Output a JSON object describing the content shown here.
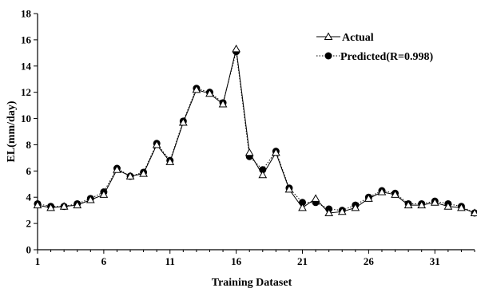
{
  "chart_data": {
    "type": "line",
    "title": "",
    "xlabel": "Training Dataset",
    "ylabel": "EL(mm/day)",
    "xlim": [
      1,
      34
    ],
    "ylim": [
      0,
      18
    ],
    "xticks": [
      1,
      6,
      11,
      16,
      21,
      26,
      31
    ],
    "yticks": [
      0,
      2,
      4,
      6,
      8,
      10,
      12,
      14,
      16,
      18
    ],
    "grid": false,
    "legend_position": "top-right",
    "x": [
      1,
      2,
      3,
      4,
      5,
      6,
      7,
      8,
      9,
      10,
      11,
      12,
      13,
      14,
      15,
      16,
      17,
      18,
      19,
      20,
      21,
      22,
      23,
      24,
      25,
      26,
      27,
      28,
      29,
      30,
      31,
      32,
      33,
      34
    ],
    "series": [
      {
        "name": "Actual",
        "marker": "triangle-open",
        "line": "solid",
        "color": "#000000",
        "values": [
          3.4,
          3.2,
          3.3,
          3.4,
          3.8,
          4.2,
          6.1,
          5.6,
          5.8,
          8.0,
          6.7,
          9.7,
          12.2,
          11.9,
          11.1,
          15.3,
          7.4,
          5.7,
          7.4,
          4.6,
          3.2,
          3.9,
          2.8,
          2.9,
          3.2,
          3.9,
          4.4,
          4.2,
          3.4,
          3.4,
          3.6,
          3.3,
          3.2,
          2.8
        ]
      },
      {
        "name": "Predicted(R=0.998)",
        "marker": "circle-filled",
        "line": "dotted",
        "color": "#000000",
        "values": [
          3.5,
          3.3,
          3.3,
          3.5,
          3.9,
          4.4,
          6.2,
          5.6,
          5.9,
          8.1,
          6.8,
          9.8,
          12.3,
          12.0,
          11.2,
          15.1,
          7.1,
          6.1,
          7.5,
          4.7,
          3.6,
          3.6,
          3.1,
          3.0,
          3.4,
          4.0,
          4.5,
          4.3,
          3.5,
          3.5,
          3.7,
          3.5,
          3.3,
          2.8
        ]
      }
    ]
  }
}
